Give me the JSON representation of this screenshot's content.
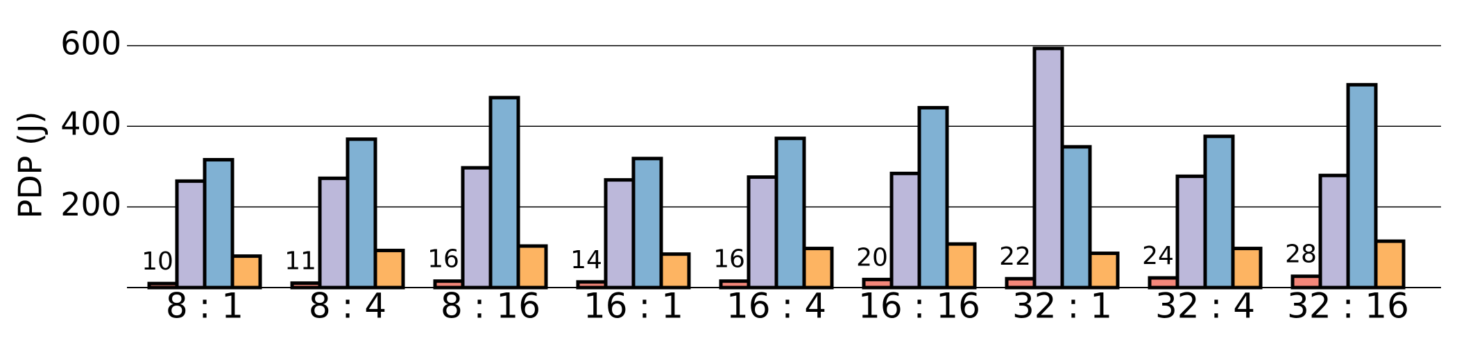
{
  "chart_data": {
    "type": "bar",
    "y_label": "PDP (J)",
    "categories": [
      "8 : 1",
      "8 : 4",
      "8 : 16",
      "16 : 1",
      "16 : 4",
      "16 : 16",
      "32 : 1",
      "32 : 4",
      "32 : 16"
    ],
    "series": [
      {
        "color": "#f4877a",
        "values": [
          10,
          11,
          16,
          14,
          16,
          20,
          22,
          24,
          28
        ]
      },
      {
        "color": "#bcb8da",
        "values": [
          264,
          271,
          297,
          267,
          274,
          283,
          593,
          276,
          278
        ]
      },
      {
        "color": "#80b1d3",
        "values": [
          317,
          368,
          471,
          320,
          370,
          446,
          349,
          375,
          503
        ]
      },
      {
        "color": "#fdb462",
        "values": [
          78,
          92,
          103,
          83,
          97,
          108,
          85,
          97,
          115
        ]
      }
    ],
    "ylim": [
      0,
      610
    ],
    "yticks": [
      200,
      400,
      600
    ],
    "grid": true
  }
}
